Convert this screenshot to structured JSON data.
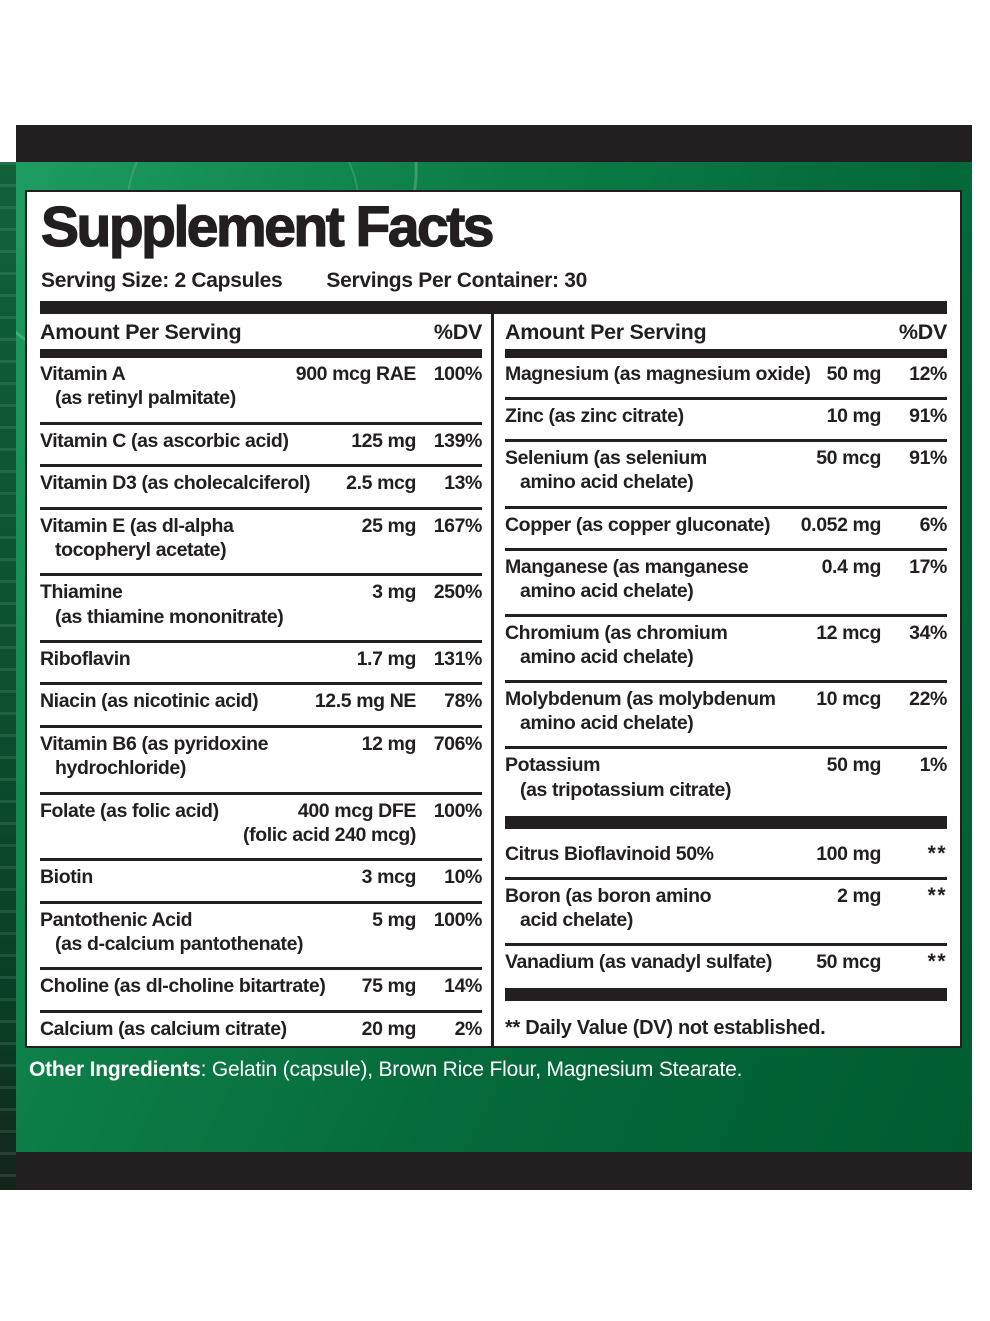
{
  "colors": {
    "ink": "#231f20",
    "green_light": "#1d9c61",
    "green_main": "#0e8049",
    "green_dark": "#005c30",
    "strip_green": "#0d4d2e",
    "panel_bg": "#ffffff",
    "text_white": "#ffffff"
  },
  "label": {
    "title": "Supplement Facts",
    "serving_size": "Serving Size: 2 Capsules",
    "servings_per_container": "Servings Per Container: 30",
    "columns_header": {
      "amount": "Amount Per Serving",
      "dv": "%DV"
    },
    "left_rows": [
      {
        "name": "Vitamin A",
        "name2": "(as retinyl palmitate)",
        "amount": "900 mcg RAE",
        "dv": "100%"
      },
      {
        "name": "Vitamin C (as ascorbic acid)",
        "amount": "125 mg",
        "dv": "139%"
      },
      {
        "name": "Vitamin D3 (as cholecalciferol)",
        "amount": "2.5 mcg",
        "dv": "13%"
      },
      {
        "name": "Vitamin E (as dl-alpha",
        "name2": "tocopheryl acetate)",
        "amount": "25 mg",
        "dv": "167%"
      },
      {
        "name": "Thiamine",
        "name2": "(as thiamine mononitrate)",
        "amount": "3 mg",
        "dv": "250%"
      },
      {
        "name": "Riboflavin",
        "amount": "1.7 mg",
        "dv": "131%"
      },
      {
        "name": "Niacin (as nicotinic acid)",
        "amount": "12.5 mg NE",
        "dv": "78%"
      },
      {
        "name": "Vitamin B6 (as pyridoxine",
        "name2": "hydrochloride)",
        "amount": "12 mg",
        "dv": "706%"
      },
      {
        "name": "Folate (as folic acid)",
        "amount": "400 mcg DFE",
        "amount2": "(folic acid 240 mcg)",
        "dv": "100%"
      },
      {
        "name": "Biotin",
        "amount": "3 mcg",
        "dv": "10%"
      },
      {
        "name": "Pantothenic Acid",
        "name2": "(as d-calcium pantothenate)",
        "amount": "5 mg",
        "dv": "100%"
      },
      {
        "name": "Choline (as dl-choline bitartrate)",
        "amount": "75 mg",
        "dv": "14%"
      },
      {
        "name": "Calcium (as calcium citrate)",
        "amount": "20 mg",
        "dv": "2%"
      }
    ],
    "right_items": [
      {
        "type": "row",
        "name": "Magnesium (as magnesium oxide)",
        "amount": "50 mg",
        "dv": "12%"
      },
      {
        "type": "row",
        "name": "Zinc (as zinc citrate)",
        "amount": "10 mg",
        "dv": "91%"
      },
      {
        "type": "row",
        "name": "Selenium (as selenium",
        "name2": "amino acid chelate)",
        "amount": "50 mcg",
        "dv": "91%"
      },
      {
        "type": "row",
        "name": "Copper (as copper gluconate)",
        "amount": "0.052 mg",
        "dv": "6%"
      },
      {
        "type": "row",
        "name": "Manganese (as manganese",
        "name2": "amino acid chelate)",
        "amount": "0.4 mg",
        "dv": "17%"
      },
      {
        "type": "row",
        "name": "Chromium (as chromium",
        "name2": "amino acid chelate)",
        "amount": "12 mcg",
        "dv": "34%"
      },
      {
        "type": "row",
        "name": "Molybdenum (as molybdenum",
        "name2": "amino acid chelate)",
        "amount": "10 mcg",
        "dv": "22%"
      },
      {
        "type": "row",
        "name": "Potassium",
        "name2": "(as tripotassium citrate)",
        "amount": "50 mg",
        "dv": "1%"
      },
      {
        "type": "bar"
      },
      {
        "type": "row",
        "name": "Citrus Bioflavinoid 50%",
        "amount": "100 mg",
        "dv": "**"
      },
      {
        "type": "row",
        "name": "Boron (as boron amino",
        "name2": "acid chelate)",
        "amount": "2 mg",
        "dv": "**"
      },
      {
        "type": "row",
        "name": "Vanadium (as vanadyl sulfate)",
        "amount": "50 mcg",
        "dv": "**"
      },
      {
        "type": "bar"
      },
      {
        "type": "footnote",
        "text": "** Daily Value (DV) not established."
      }
    ],
    "other_ingredients": {
      "label": "Other Ingredients",
      "text": ": Gelatin (capsule), Brown Rice Flour, Magnesium Stearate."
    }
  }
}
